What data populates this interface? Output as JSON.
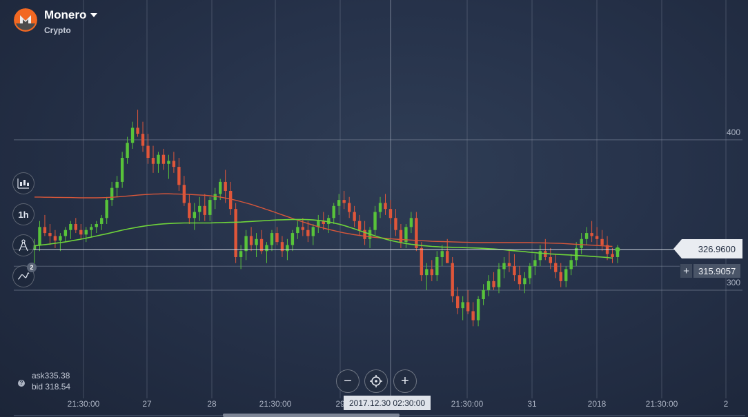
{
  "header": {
    "asset_name": "Monero",
    "asset_type": "Crypto",
    "logo_icon": "monero-logo-icon"
  },
  "tools": [
    {
      "name": "chart-type-candles-icon",
      "label": ""
    },
    {
      "name": "timeframe",
      "label": "1h"
    },
    {
      "name": "drawing-tools-icon",
      "label": ""
    },
    {
      "name": "indicators-icon",
      "label": "",
      "badge": "2"
    }
  ],
  "price": {
    "current": "326.9600",
    "bid_tag": "315.9057",
    "plus": "+"
  },
  "quotes": {
    "ask": "ask335.38",
    "bid": "bid 318.54",
    "help": "?"
  },
  "zoom": {
    "minus": "−",
    "plus": "+"
  },
  "crosshair_time": "2017.12.30 02:30:00",
  "colors": {
    "up": "#58c33a",
    "down": "#e0563a",
    "ma_fast": "#6fd43a",
    "ma_slow": "#d9573a",
    "bg": "#26324a"
  },
  "chart_data": {
    "type": "candlestick",
    "y_ticks": [
      {
        "value": 400,
        "label": "400"
      },
      {
        "value": 300,
        "label": "300"
      }
    ],
    "ylim": [
      228,
      493
    ],
    "x_ticks": [
      "21:30:00",
      "27",
      "28",
      "21:30:00",
      "29",
      "21:30:00",
      "31",
      "2018",
      "21:30:00",
      "2"
    ],
    "current_price": 326.96,
    "bid_level": 315.9057,
    "candles": [
      [
        327,
        334,
        318,
        330
      ],
      [
        330,
        346,
        326,
        342
      ],
      [
        342,
        350,
        336,
        338
      ],
      [
        338,
        344,
        330,
        336
      ],
      [
        336,
        340,
        328,
        333
      ],
      [
        333,
        338,
        326,
        336
      ],
      [
        336,
        342,
        332,
        340
      ],
      [
        340,
        346,
        334,
        344
      ],
      [
        344,
        348,
        338,
        340
      ],
      [
        340,
        344,
        334,
        337
      ],
      [
        337,
        342,
        332,
        340
      ],
      [
        340,
        344,
        335,
        342
      ],
      [
        342,
        346,
        338,
        344
      ],
      [
        344,
        350,
        340,
        348
      ],
      [
        348,
        362,
        344,
        360
      ],
      [
        360,
        372,
        356,
        368
      ],
      [
        368,
        376,
        362,
        372
      ],
      [
        372,
        392,
        368,
        388
      ],
      [
        388,
        402,
        384,
        398
      ],
      [
        398,
        412,
        394,
        408
      ],
      [
        408,
        420,
        402,
        404
      ],
      [
        404,
        412,
        392,
        396
      ],
      [
        396,
        404,
        384,
        388
      ],
      [
        388,
        396,
        378,
        384
      ],
      [
        384,
        392,
        378,
        390
      ],
      [
        390,
        394,
        380,
        384
      ],
      [
        384,
        390,
        374,
        386
      ],
      [
        386,
        392,
        378,
        382
      ],
      [
        382,
        388,
        366,
        370
      ],
      [
        370,
        376,
        356,
        358
      ],
      [
        358,
        364,
        344,
        348
      ],
      [
        348,
        358,
        340,
        352
      ],
      [
        352,
        362,
        346,
        356
      ],
      [
        356,
        364,
        346,
        350
      ],
      [
        350,
        362,
        346,
        360
      ],
      [
        360,
        368,
        354,
        364
      ],
      [
        364,
        374,
        360,
        372
      ],
      [
        372,
        380,
        358,
        366
      ],
      [
        366,
        372,
        350,
        354
      ],
      [
        354,
        358,
        318,
        322
      ],
      [
        322,
        330,
        314,
        326
      ],
      [
        326,
        340,
        320,
        336
      ],
      [
        336,
        342,
        326,
        330
      ],
      [
        330,
        338,
        322,
        334
      ],
      [
        334,
        340,
        324,
        326
      ],
      [
        326,
        332,
        318,
        330
      ],
      [
        330,
        340,
        326,
        338
      ],
      [
        338,
        342,
        330,
        332
      ],
      [
        332,
        336,
        322,
        326
      ],
      [
        326,
        334,
        320,
        330
      ],
      [
        330,
        340,
        326,
        338
      ],
      [
        338,
        346,
        334,
        342
      ],
      [
        342,
        348,
        336,
        340
      ],
      [
        340,
        346,
        332,
        336
      ],
      [
        336,
        344,
        330,
        342
      ],
      [
        342,
        350,
        338,
        346
      ],
      [
        346,
        352,
        340,
        344
      ],
      [
        344,
        350,
        338,
        348
      ],
      [
        348,
        358,
        344,
        356
      ],
      [
        356,
        364,
        350,
        360
      ],
      [
        360,
        366,
        354,
        358
      ],
      [
        358,
        362,
        348,
        352
      ],
      [
        352,
        356,
        342,
        346
      ],
      [
        346,
        350,
        336,
        340
      ],
      [
        340,
        346,
        330,
        334
      ],
      [
        334,
        342,
        328,
        340
      ],
      [
        340,
        356,
        336,
        352
      ],
      [
        352,
        362,
        348,
        358
      ],
      [
        358,
        364,
        350,
        354
      ],
      [
        354,
        360,
        344,
        348
      ],
      [
        348,
        354,
        336,
        340
      ],
      [
        340,
        344,
        328,
        332
      ],
      [
        332,
        344,
        328,
        342
      ],
      [
        342,
        352,
        338,
        348
      ],
      [
        348,
        352,
        326,
        328
      ],
      [
        328,
        332,
        306,
        310
      ],
      [
        310,
        318,
        300,
        314
      ],
      [
        314,
        320,
        306,
        310
      ],
      [
        310,
        326,
        306,
        322
      ],
      [
        322,
        330,
        316,
        326
      ],
      [
        326,
        334,
        320,
        318
      ],
      [
        318,
        322,
        292,
        296
      ],
      [
        296,
        302,
        284,
        288
      ],
      [
        288,
        296,
        280,
        292
      ],
      [
        292,
        300,
        284,
        286
      ],
      [
        286,
        292,
        276,
        280
      ],
      [
        280,
        296,
        276,
        294
      ],
      [
        294,
        304,
        290,
        300
      ],
      [
        300,
        310,
        296,
        306
      ],
      [
        306,
        312,
        300,
        302
      ],
      [
        302,
        318,
        298,
        314
      ],
      [
        314,
        322,
        308,
        318
      ],
      [
        318,
        326,
        312,
        316
      ],
      [
        316,
        324,
        306,
        310
      ],
      [
        310,
        316,
        300,
        304
      ],
      [
        304,
        312,
        298,
        308
      ],
      [
        308,
        318,
        304,
        316
      ],
      [
        316,
        324,
        310,
        320
      ],
      [
        320,
        330,
        316,
        326
      ],
      [
        326,
        334,
        320,
        322
      ],
      [
        322,
        328,
        314,
        318
      ],
      [
        318,
        324,
        308,
        312
      ],
      [
        312,
        318,
        302,
        306
      ],
      [
        306,
        316,
        302,
        314
      ],
      [
        314,
        324,
        310,
        320
      ],
      [
        320,
        332,
        316,
        328
      ],
      [
        328,
        338,
        324,
        334
      ],
      [
        334,
        342,
        330,
        338
      ],
      [
        338,
        346,
        332,
        336
      ],
      [
        336,
        342,
        330,
        334
      ],
      [
        334,
        340,
        326,
        330
      ],
      [
        330,
        336,
        320,
        324
      ],
      [
        324,
        328,
        318,
        322
      ],
      [
        322,
        330,
        318,
        327
      ]
    ],
    "series": [
      {
        "values": [
          329.5,
          329.9,
          330.3,
          330.7,
          331.2,
          331.6,
          332.1,
          332.7,
          333.3,
          333.9,
          334.6,
          335.3,
          336.0,
          336.8,
          337.5,
          338.3,
          339.1,
          339.9,
          340.6,
          341.3,
          341.9,
          342.5,
          343.0,
          343.4,
          343.8,
          344.1,
          344.3,
          344.5,
          344.6,
          344.7,
          344.7,
          344.7,
          344.7,
          344.7,
          344.7,
          344.8,
          344.9,
          345.0,
          345.1,
          345.2,
          345.3,
          345.5,
          345.7,
          345.9,
          346.1,
          346.3,
          346.5,
          346.7,
          346.8,
          346.9,
          347.0,
          347.0,
          347.0,
          346.9,
          346.7,
          346.4,
          346.0,
          345.4,
          344.7,
          343.9,
          343.0,
          341.9,
          340.8,
          339.6,
          338.4,
          337.3,
          336.1,
          335.0,
          334.0,
          333.1,
          332.3,
          331.6,
          331.0,
          330.5,
          330.1,
          329.7,
          329.4,
          329.1,
          328.9,
          328.7,
          328.6,
          328.5,
          328.4,
          328.3,
          328.2,
          328.1,
          328.0,
          327.8,
          327.6,
          327.4,
          327.1,
          326.9,
          326.5,
          326.2,
          325.9,
          325.6,
          325.2,
          324.9,
          324.6,
          324.4,
          324.1,
          323.9,
          323.7,
          323.5,
          323.3,
          323.1,
          322.9,
          322.7,
          322.5,
          322.2,
          322.0,
          321.7,
          321.3
        ]
      },
      {
        "values": [
          361.9,
          361.9,
          361.8,
          361.8,
          361.7,
          361.7,
          361.6,
          361.6,
          361.5,
          361.4,
          361.4,
          361.4,
          361.4,
          361.5,
          361.6,
          361.8,
          362.0,
          362.3,
          362.6,
          362.9,
          363.2,
          363.5,
          363.7,
          363.9,
          364.0,
          364.1,
          364.1,
          364.0,
          363.9,
          363.8,
          363.7,
          363.5,
          363.3,
          363.1,
          362.8,
          362.4,
          361.9,
          361.3,
          360.6,
          359.8,
          358.9,
          358.0,
          357.0,
          355.9,
          354.8,
          353.6,
          352.5,
          351.3,
          350.1,
          348.9,
          347.7,
          346.5,
          345.4,
          344.3,
          343.2,
          342.2,
          341.3,
          340.4,
          339.6,
          338.8,
          338.1,
          337.5,
          336.9,
          336.4,
          335.9,
          335.5,
          335.1,
          334.8,
          334.5,
          334.2,
          333.9,
          333.7,
          333.5,
          333.3,
          333.1,
          332.9,
          332.7,
          332.5,
          332.4,
          332.3,
          332.2,
          332.1,
          332.0,
          331.9,
          331.8,
          331.7,
          331.6,
          331.6,
          331.6,
          331.6,
          331.6,
          331.6,
          331.6,
          331.6,
          331.6,
          331.6,
          331.6,
          331.5,
          331.5,
          331.4,
          331.3,
          331.2,
          331.1,
          330.9,
          330.7,
          330.5,
          330.3,
          330.1,
          329.9,
          329.7,
          329.5,
          329.3,
          329.1
        ]
      }
    ]
  }
}
